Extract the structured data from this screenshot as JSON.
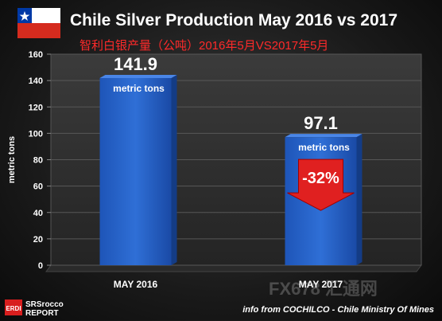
{
  "chart_data": {
    "type": "bar",
    "title": "Chile Silver Production May 2016 vs 2017",
    "subtitle": "智利白银产量（公吨）2016年5月VS2017年5月",
    "ylabel": "metric tons",
    "xlabel": "",
    "ylim": [
      0,
      160
    ],
    "yticks": [
      0,
      20,
      40,
      60,
      80,
      100,
      120,
      140,
      160
    ],
    "categories": [
      "MAY 2016",
      "MAY 2017"
    ],
    "values": [
      141.9,
      97.1
    ],
    "value_labels": [
      "141.9",
      "97.1"
    ],
    "unit_labels": [
      "metric tons",
      "metric tons"
    ],
    "change_label": "-32%",
    "bar_color": "#2f6fd6",
    "arrow_color": "#e02020",
    "grid": true
  },
  "footer": {
    "credit": "info from COCHILCO - Chile Ministry Of Mines",
    "logo_text": "SRSrocco REPORT",
    "watermark": "FX678 汇通网"
  }
}
